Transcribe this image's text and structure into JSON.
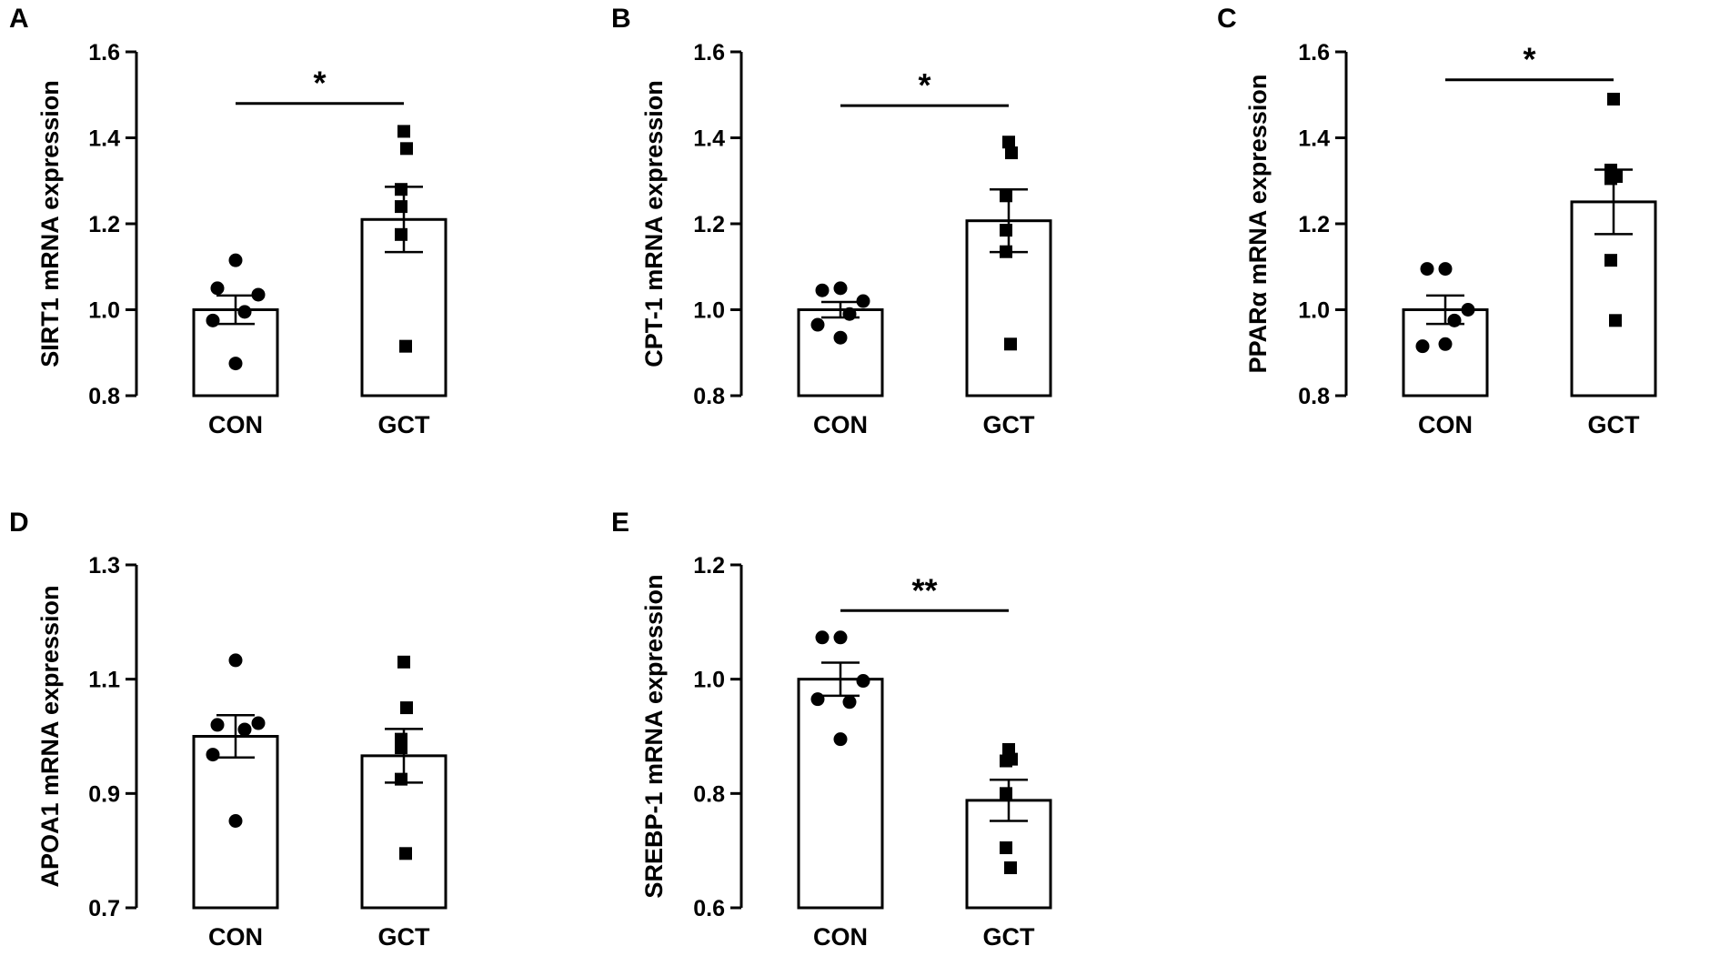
{
  "figure": {
    "background": "#ffffff",
    "ink": "#000000"
  },
  "chart_data": [
    {
      "panel": "A",
      "type": "bar",
      "ylabel": "SIRT1 mRNA expression",
      "ylim": [
        0.8,
        1.6
      ],
      "yticks": [
        0.8,
        1.0,
        1.2,
        1.4,
        1.6
      ],
      "yticklabels": [
        "0.8",
        "1.0",
        "1.2",
        "1.4",
        "1.6"
      ],
      "categories": [
        "CON",
        "GCT"
      ],
      "means": [
        1.0,
        1.21
      ],
      "sem": [
        0.033,
        0.076
      ],
      "points": [
        [
          1.115,
          1.05,
          1.035,
          0.995,
          0.975,
          0.875
        ],
        [
          1.415,
          1.375,
          1.28,
          1.24,
          1.175,
          0.915
        ]
      ],
      "markers": [
        "circle",
        "square"
      ],
      "significance": {
        "label": "*",
        "y": 1.48
      }
    },
    {
      "panel": "B",
      "type": "bar",
      "ylabel": "CPT-1 mRNA expression",
      "ylim": [
        0.8,
        1.6
      ],
      "yticks": [
        0.8,
        1.0,
        1.2,
        1.4,
        1.6
      ],
      "yticklabels": [
        "0.8",
        "1.0",
        "1.2",
        "1.4",
        "1.6"
      ],
      "categories": [
        "CON",
        "GCT"
      ],
      "means": [
        1.0,
        1.207
      ],
      "sem": [
        0.018,
        0.073
      ],
      "points": [
        [
          1.05,
          1.045,
          1.02,
          0.99,
          0.965,
          0.935
        ],
        [
          1.39,
          1.365,
          1.265,
          1.185,
          1.135,
          0.92
        ]
      ],
      "markers": [
        "circle",
        "square"
      ],
      "significance": {
        "label": "*",
        "y": 1.475
      }
    },
    {
      "panel": "C",
      "type": "bar",
      "ylabel": "PPARα mRNA expression",
      "ylim": [
        0.8,
        1.6
      ],
      "yticks": [
        0.8,
        1.0,
        1.2,
        1.4,
        1.6
      ],
      "yticklabels": [
        "0.8",
        "1.0",
        "1.2",
        "1.4",
        "1.6"
      ],
      "categories": [
        "CON",
        "GCT"
      ],
      "means": [
        1.0,
        1.251
      ],
      "sem": [
        0.033,
        0.075
      ],
      "points": [
        [
          1.095,
          1.095,
          1.0,
          0.975,
          0.915,
          0.92
        ],
        [
          1.49,
          1.31,
          1.325,
          1.305,
          1.115,
          0.975
        ]
      ],
      "markers": [
        "circle",
        "square"
      ],
      "significance": {
        "label": "*",
        "y": 1.535
      }
    },
    {
      "panel": "D",
      "type": "bar",
      "ylabel": "APOA1 mRNA expression",
      "ylim": [
        0.7,
        1.3
      ],
      "yticks": [
        0.7,
        0.9,
        1.1,
        1.3
      ],
      "yticklabels": [
        "0.7",
        "0.9",
        "1.1",
        "1.3"
      ],
      "categories": [
        "CON",
        "GCT"
      ],
      "means": [
        1.0,
        0.966
      ],
      "sem": [
        0.037,
        0.047
      ],
      "points": [
        [
          1.133,
          1.02,
          1.023,
          1.012,
          0.968,
          0.852
        ],
        [
          1.13,
          1.05,
          0.995,
          0.98,
          0.925,
          0.795
        ]
      ],
      "markers": [
        "circle",
        "square"
      ],
      "significance": null
    },
    {
      "panel": "E",
      "type": "bar",
      "ylabel": "SREBP-1 mRNA expression",
      "ylim": [
        0.6,
        1.2
      ],
      "yticks": [
        0.6,
        0.8,
        1.0,
        1.2
      ],
      "yticklabels": [
        "0.6",
        "0.8",
        "1.0",
        "1.2"
      ],
      "categories": [
        "CON",
        "GCT"
      ],
      "means": [
        1.0,
        0.788
      ],
      "sem": [
        0.029,
        0.036
      ],
      "points": [
        [
          1.073,
          1.073,
          0.997,
          0.96,
          0.965,
          0.895
        ],
        [
          0.877,
          0.86,
          0.857,
          0.8,
          0.705,
          0.67
        ]
      ],
      "markers": [
        "circle",
        "square"
      ],
      "significance": {
        "label": "**",
        "y": 1.12
      }
    }
  ]
}
